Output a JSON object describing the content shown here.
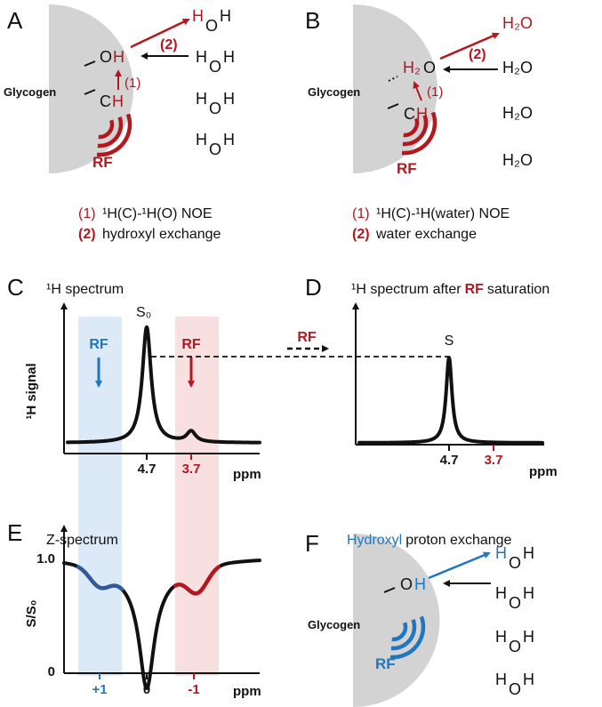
{
  "panels": {
    "A": {
      "letter": "A",
      "surface": "Glycogen",
      "hydroxyl": [
        "O",
        "H"
      ],
      "methine": [
        "C",
        "H"
      ],
      "rf": "RF",
      "step1": "(1)",
      "step2": "(2)",
      "waters": [
        [
          "H",
          "O",
          "H"
        ],
        [
          "H",
          "O",
          "H"
        ],
        [
          "H",
          "O",
          "H"
        ],
        [
          "H",
          "O",
          "H"
        ]
      ],
      "legend": [
        {
          "number": "(1)",
          "text": "¹H(C)-¹H(O) NOE"
        },
        {
          "number": "(2)",
          "text": "hydroxyl exchange"
        }
      ]
    },
    "B": {
      "letter": "B",
      "surface": "Glycogen",
      "bound_water": [
        "H₂",
        "O"
      ],
      "methine": [
        "C",
        "H"
      ],
      "rf": "RF",
      "step1": "(1)",
      "step2": "(2)",
      "waters": [
        "H₂O",
        "H₂O",
        "H₂O",
        "H₂O"
      ],
      "legend": [
        {
          "number": "(1)",
          "text": "¹H(C)-¹H(water) NOE"
        },
        {
          "number": "(2)",
          "text": "water exchange"
        }
      ]
    },
    "C": {
      "letter": "C",
      "title": "¹H spectrum",
      "y_label": "¹H signal",
      "peak": "S₀",
      "x_ticks": [
        "4.7",
        "3.7"
      ],
      "x_label": "ppm",
      "rf_labels": [
        "RF",
        "RF"
      ],
      "transfer": "RF"
    },
    "D": {
      "letter": "D",
      "title": [
        "¹H spectrum after",
        "RF",
        "saturation"
      ],
      "peak": "S",
      "x_ticks": [
        "4.7",
        "3.7"
      ],
      "x_label": "ppm"
    },
    "E": {
      "letter": "E",
      "title": "Z-spectrum",
      "y_label": "S/S₀",
      "y_ticks": [
        "1.0",
        "0"
      ],
      "x_ticks": [
        "+1",
        "0",
        "-1"
      ],
      "x_label": "ppm"
    },
    "F": {
      "letter": "F",
      "title": [
        "Hydroxyl",
        "proton exchange"
      ],
      "surface": "Glycogen",
      "hydroxyl": [
        "O",
        "H"
      ],
      "rf": "RF",
      "waters": [
        [
          "H",
          "O",
          "H"
        ],
        [
          "H",
          "O",
          "H"
        ],
        [
          "H",
          "O",
          "H"
        ],
        [
          "H",
          "O",
          "H"
        ]
      ]
    }
  }
}
